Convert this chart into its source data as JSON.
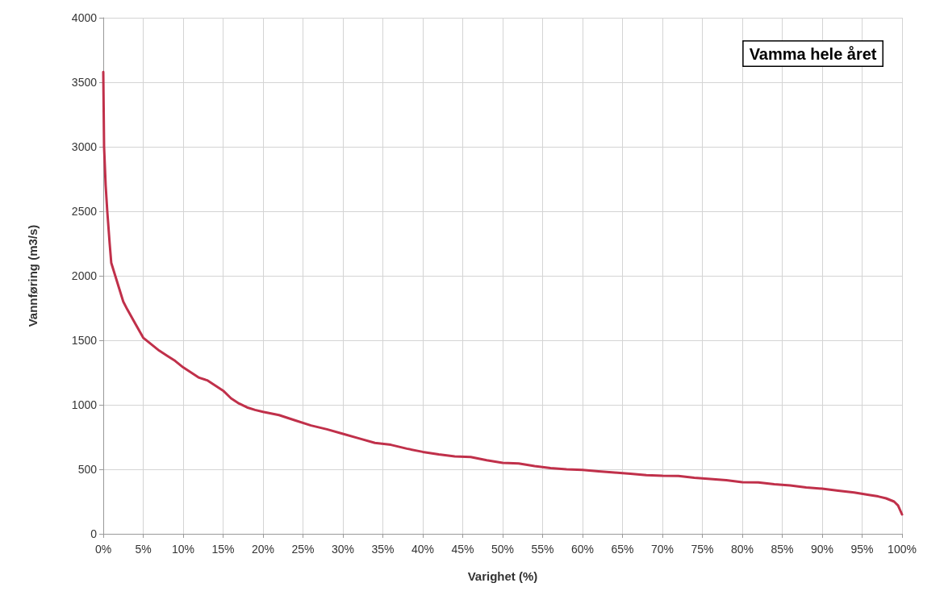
{
  "chart_data": {
    "type": "line",
    "xlabel": "Varighet (%)",
    "ylabel": "Vannføring (m3/s)",
    "annotations": [
      "Vamma hele året"
    ],
    "x": [
      0,
      0.1,
      0.3,
      0.5,
      0.8,
      1,
      1.5,
      2,
      2.5,
      3,
      4,
      5,
      6,
      7,
      8,
      9,
      10,
      11,
      12,
      13,
      14,
      15,
      16,
      17,
      18,
      19,
      20,
      22,
      24,
      26,
      28,
      30,
      32,
      34,
      36,
      38,
      40,
      42,
      44,
      46,
      48,
      50,
      52,
      54,
      56,
      58,
      60,
      62,
      64,
      66,
      68,
      70,
      72,
      74,
      76,
      78,
      80,
      82,
      84,
      86,
      88,
      90,
      92,
      94,
      96,
      97,
      98,
      99,
      99.5,
      100
    ],
    "series": [
      {
        "color": "#c0304a",
        "values": [
          3580,
          3000,
          2700,
          2500,
          2250,
          2100,
          2000,
          1900,
          1800,
          1740,
          1630,
          1520,
          1470,
          1420,
          1380,
          1340,
          1290,
          1250,
          1210,
          1190,
          1150,
          1110,
          1050,
          1010,
          980,
          960,
          945,
          920,
          880,
          840,
          810,
          775,
          740,
          705,
          690,
          660,
          635,
          615,
          600,
          595,
          570,
          550,
          545,
          525,
          510,
          500,
          495,
          485,
          475,
          465,
          455,
          450,
          448,
          435,
          425,
          415,
          400,
          398,
          385,
          375,
          360,
          350,
          335,
          320,
          300,
          290,
          275,
          250,
          220,
          150
        ]
      }
    ],
    "xlim": [
      0,
      100
    ],
    "xticks": [
      {
        "value": 0,
        "label": "0%"
      },
      {
        "value": 5,
        "label": "5%"
      },
      {
        "value": 10,
        "label": "10%"
      },
      {
        "value": 15,
        "label": "15%"
      },
      {
        "value": 20,
        "label": "20%"
      },
      {
        "value": 25,
        "label": "25%"
      },
      {
        "value": 30,
        "label": "30%"
      },
      {
        "value": 35,
        "label": "35%"
      },
      {
        "value": 40,
        "label": "40%"
      },
      {
        "value": 45,
        "label": "45%"
      },
      {
        "value": 50,
        "label": "50%"
      },
      {
        "value": 55,
        "label": "55%"
      },
      {
        "value": 60,
        "label": "60%"
      },
      {
        "value": 65,
        "label": "65%"
      },
      {
        "value": 70,
        "label": "70%"
      },
      {
        "value": 75,
        "label": "75%"
      },
      {
        "value": 80,
        "label": "80%"
      },
      {
        "value": 85,
        "label": "85%"
      },
      {
        "value": 90,
        "label": "90%"
      },
      {
        "value": 95,
        "label": "95%"
      },
      {
        "value": 100,
        "label": "100%"
      }
    ],
    "ylim": [
      0,
      4000
    ],
    "yticks": [
      0,
      500,
      1000,
      1500,
      2000,
      2500,
      3000,
      3500,
      4000
    ],
    "grid": true,
    "marker": "none",
    "line_style": "solid"
  }
}
